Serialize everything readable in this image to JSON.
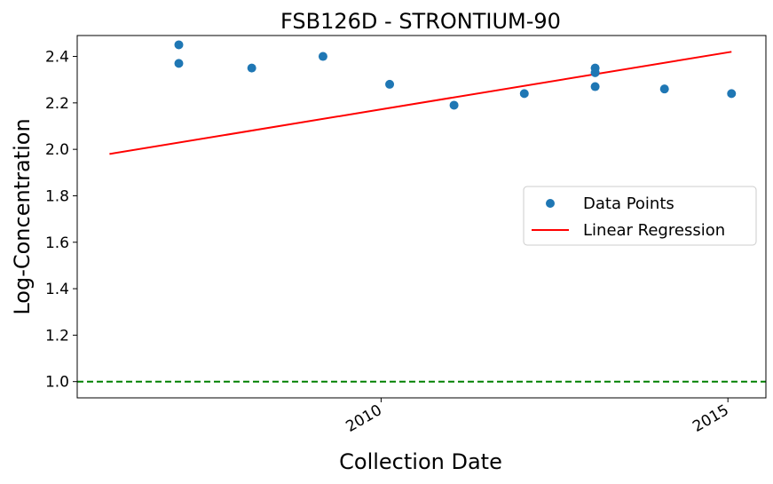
{
  "chart_data": {
    "type": "scatter",
    "title": "FSB126D - STRONTIUM-90",
    "xlabel": "Collection Date",
    "ylabel": "Log-Concentration",
    "xlim": [
      "2005-08-15",
      "2015-07-20"
    ],
    "ylim": [
      0.93,
      2.49
    ],
    "x_ticks": [
      {
        "date": "2010-01-01",
        "label": "2010"
      },
      {
        "date": "2015-01-01",
        "label": "2015"
      }
    ],
    "y_ticks": [
      1.0,
      1.2,
      1.4,
      1.6,
      1.8,
      2.0,
      2.2,
      2.4
    ],
    "grid": false,
    "legend": {
      "location": "center-right",
      "entries": [
        "Data Points",
        "Linear Regression"
      ]
    },
    "series": [
      {
        "name": "Data Points",
        "kind": "scatter",
        "color": "#1f77b4",
        "points": [
          {
            "date": "2007-02-01",
            "y": 2.45
          },
          {
            "date": "2007-02-01",
            "y": 2.37
          },
          {
            "date": "2008-02-20",
            "y": 2.35
          },
          {
            "date": "2009-03-01",
            "y": 2.4
          },
          {
            "date": "2010-02-15",
            "y": 2.28
          },
          {
            "date": "2011-01-20",
            "y": 2.19
          },
          {
            "date": "2012-01-25",
            "y": 2.24
          },
          {
            "date": "2013-02-01",
            "y": 2.35
          },
          {
            "date": "2013-02-01",
            "y": 2.33
          },
          {
            "date": "2013-02-01",
            "y": 2.27
          },
          {
            "date": "2014-02-01",
            "y": 2.26
          },
          {
            "date": "2015-01-20",
            "y": 2.24
          }
        ]
      },
      {
        "name": "Linear Regression",
        "kind": "line",
        "color": "#ff0000",
        "points": [
          {
            "date": "2006-02-01",
            "y": 1.98
          },
          {
            "date": "2015-01-20",
            "y": 2.42
          }
        ]
      }
    ],
    "reference_line": {
      "y": 1.0,
      "color": "#008000",
      "style": "dashed"
    }
  }
}
